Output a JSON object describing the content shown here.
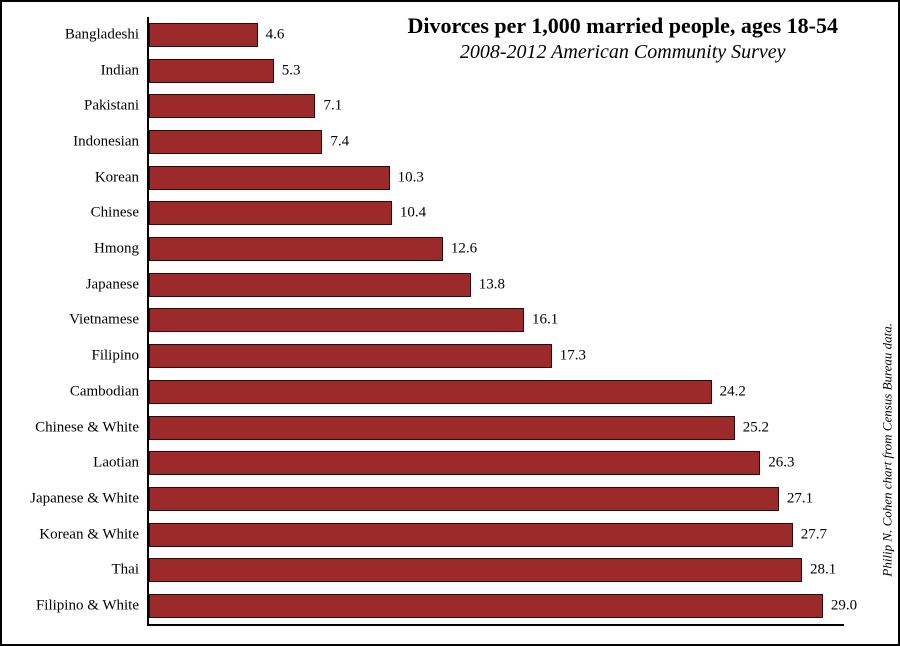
{
  "chart": {
    "type": "bar-horizontal",
    "title": "Divorces per 1,000 married people, ages 18-54",
    "subtitle": "2008-2012 American Community Survey",
    "credit": "Philip N. Cohen chart from Census Bureau data.",
    "title_fontsize": 22,
    "subtitle_fontsize": 20,
    "credit_fontsize": 13,
    "label_fontsize": 15,
    "value_fontsize": 15,
    "bar_color": "#9c2a2a",
    "background_color": "#ffffff",
    "border_color": "#000000",
    "axis_color": "#000000",
    "xmax": 30,
    "categories": [
      "Bangladeshi",
      "Indian",
      "Pakistani",
      "Indonesian",
      "Korean",
      "Chinese",
      "Hmong",
      "Japanese",
      "Vietnamese",
      "Filipino",
      "Cambodian",
      "Chinese & White",
      "Laotian",
      "Japanese & White",
      "Korean & White",
      "Thai",
      "Filipino & White"
    ],
    "values": [
      4.6,
      5.3,
      7.1,
      7.4,
      10.3,
      10.4,
      12.6,
      13.8,
      16.1,
      17.3,
      24.2,
      25.2,
      26.3,
      27.1,
      27.7,
      28.1,
      29.0
    ],
    "value_labels": [
      "4.6",
      "5.3",
      "7.1",
      "7.4",
      "10.3",
      "10.4",
      "12.6",
      "13.8",
      "16.1",
      "17.3",
      "24.2",
      "25.2",
      "26.3",
      "27.1",
      "27.7",
      "28.1",
      "29.0"
    ]
  }
}
